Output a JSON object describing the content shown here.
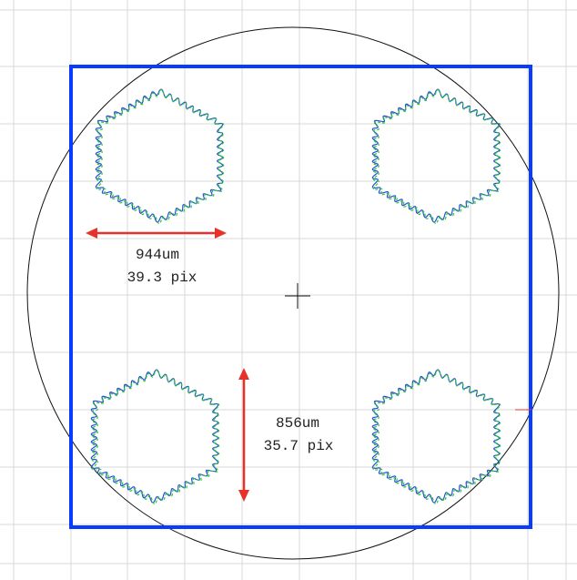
{
  "colors": {
    "background": "#ffffff",
    "grid": "#d8d8d8",
    "circle": "#111111",
    "crosshair": "#111111",
    "boundary": "#0a3cff",
    "shape_blue": "#2a4fd6",
    "shape_green": "#28c83a",
    "dimension_arrow": "#e8312a",
    "text": "#222222"
  },
  "icons": {
    "center": "crosshair-icon"
  },
  "measurements": {
    "width": {
      "value": "944um",
      "pixels": "39.3 pix"
    },
    "height": {
      "value": "856um",
      "pixels": "35.7 pix"
    }
  }
}
